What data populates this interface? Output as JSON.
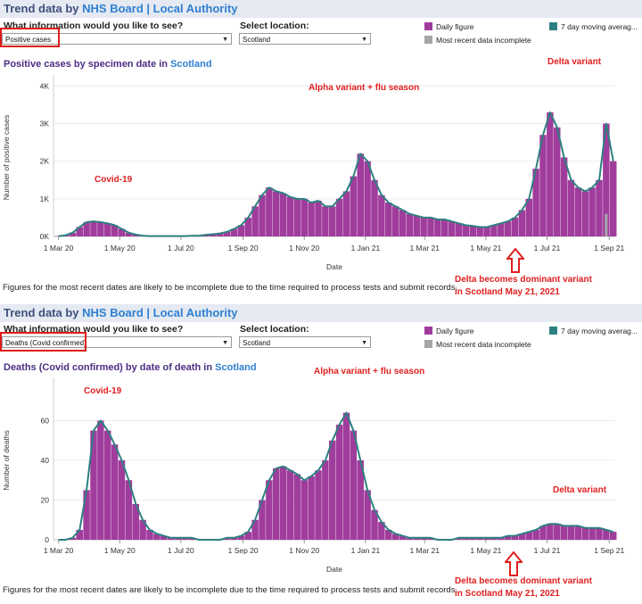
{
  "colors": {
    "daily": "#a03c9c",
    "incomplete": "#a6a6a6",
    "moving_avg": "#2e8080",
    "accent_red": "#e02020",
    "title_purple": "#4a2d84",
    "link_blue": "#2f7fd0",
    "header_bg": "#e4e9f2"
  },
  "icons": {
    "dropdown": "chevron-down-icon",
    "arrow": "red-up-arrow-icon"
  },
  "panels": [
    {
      "header": {
        "title": "Trend data by",
        "link1": "NHS Board",
        "sep": "|",
        "link2": "Local Authority"
      },
      "info_label": "What information would you like to see?",
      "info_value": "Positive cases",
      "location_label": "Select location:",
      "location_value": "Scotland",
      "legend": {
        "daily": "Daily figure",
        "incomplete": "Most recent data incomplete",
        "moving_avg": "7 day moving averag..."
      },
      "chart_title": "Positive cases by specimen date in",
      "chart_title_loc": "Scotland",
      "note": "Figures for the most recent dates are likely to be incomplete due to the time required to process tests and submit records.",
      "annotations": {
        "covid": "Covid-19",
        "alpha": "Alpha variant + flu season",
        "delta": "Delta variant",
        "dominant_line1": "Delta becomes dominant variant",
        "dominant_line2": "in Scotland May 21, 2021"
      }
    },
    {
      "header": {
        "title": "Trend data by",
        "link1": "NHS Board",
        "sep": "|",
        "link2": "Local Authority"
      },
      "info_label": "What information would you like to see?",
      "info_value": "Deaths (Covid confirmed)",
      "location_label": "Select location:",
      "location_value": "Scotland",
      "legend": {
        "daily": "Daily figure",
        "incomplete": "Most recent data incomplete",
        "moving_avg": "7 day moving averag..."
      },
      "chart_title": "Deaths (Covid confirmed) by date of death in",
      "chart_title_loc": "Scotland",
      "note": "Figures for the most recent dates are likely to be incomplete due to the time required to process tests and submit records.",
      "annotations": {
        "covid": "Covid-19",
        "alpha": "Alpha variant + flu season",
        "delta": "Delta variant",
        "dominant_line1": "Delta becomes dominant variant",
        "dominant_line2": "in Scotland May 21, 2021"
      }
    }
  ],
  "chart_data": [
    {
      "type": "bar",
      "title": "Positive cases by specimen date in Scotland",
      "xlabel": "Date",
      "ylabel": "Number of positive cases",
      "ylim": [
        0,
        4200
      ],
      "yticks": [
        0,
        1000,
        2000,
        3000,
        4000
      ],
      "ytick_labels": [
        "0K",
        "1K",
        "2K",
        "3K",
        "4K"
      ],
      "x_tick_labels": [
        "1 Mar 20",
        "1 May 20",
        "1 Jul 20",
        "1 Sep 20",
        "1 Nov 20",
        "1 Jan 21",
        "1 Mar 21",
        "1 May 21",
        "1 Jul 21",
        "1 Sep 21"
      ],
      "x_tick_days": [
        0,
        61,
        122,
        184,
        245,
        306,
        365,
        426,
        487,
        549
      ],
      "x_range_days": [
        -5,
        555
      ],
      "series_resolution": "weekly (approximate, values every 7 days from 1 Mar 2020)",
      "series": [
        {
          "name": "Daily figure (weekly avg, approx.)",
          "start_day": 0,
          "step_days": 7,
          "values": [
            10,
            30,
            100,
            250,
            380,
            400,
            380,
            350,
            300,
            200,
            100,
            50,
            20,
            10,
            10,
            10,
            10,
            10,
            10,
            20,
            20,
            40,
            60,
            80,
            120,
            200,
            300,
            500,
            800,
            1100,
            1300,
            1200,
            1150,
            1050,
            1000,
            1000,
            900,
            950,
            800,
            800,
            1000,
            1200,
            1600,
            2200,
            2000,
            1500,
            1100,
            900,
            800,
            700,
            600,
            550,
            500,
            500,
            450,
            450,
            400,
            350,
            300,
            280,
            250,
            250,
            300,
            350,
            400,
            500,
            700,
            1000,
            1800,
            2700,
            3300,
            2900,
            2100,
            1500,
            1300,
            1200,
            1300,
            1500,
            3000,
            2000
          ]
        },
        {
          "name": "7 day moving average",
          "start_day": 0,
          "step_days": 7,
          "values": [
            10,
            30,
            100,
            250,
            380,
            400,
            380,
            350,
            300,
            200,
            100,
            50,
            20,
            10,
            10,
            10,
            10,
            10,
            10,
            20,
            20,
            40,
            60,
            80,
            120,
            200,
            300,
            500,
            800,
            1100,
            1300,
            1200,
            1150,
            1050,
            1000,
            1000,
            900,
            950,
            800,
            800,
            1000,
            1200,
            1600,
            2200,
            2000,
            1500,
            1100,
            900,
            800,
            700,
            600,
            550,
            500,
            500,
            450,
            450,
            400,
            350,
            300,
            280,
            250,
            250,
            300,
            350,
            400,
            500,
            700,
            1000,
            1800,
            2700,
            3300,
            2900,
            2100,
            1500,
            1300,
            1200,
            1300,
            1500,
            3000,
            2000
          ]
        },
        {
          "name": "Most recent data incomplete",
          "start_day": 546,
          "step_days": 7,
          "values": [
            600
          ]
        }
      ],
      "legend_position": "top-right"
    },
    {
      "type": "bar",
      "title": "Deaths (Covid confirmed) by date of death in Scotland",
      "xlabel": "Date",
      "ylabel": "Number of deaths",
      "ylim": [
        0,
        80
      ],
      "yticks": [
        0,
        20,
        40,
        60
      ],
      "ytick_labels": [
        "0",
        "20",
        "40",
        "60"
      ],
      "x_tick_labels": [
        "1 Mar 20",
        "1 May 20",
        "1 Jul 20",
        "1 Sep 20",
        "1 Nov 20",
        "1 Jan 21",
        "1 Mar 21",
        "1 May 21",
        "1 Jul 21",
        "1 Sep 21"
      ],
      "x_tick_days": [
        0,
        61,
        122,
        184,
        245,
        306,
        365,
        426,
        487,
        549
      ],
      "x_range_days": [
        -5,
        555
      ],
      "series_resolution": "weekly (approximate, values every 7 days from 1 Mar 2020)",
      "series": [
        {
          "name": "Daily figure (weekly avg, approx.)",
          "start_day": 0,
          "step_days": 7,
          "values": [
            0,
            0,
            1,
            5,
            25,
            55,
            60,
            55,
            48,
            40,
            30,
            18,
            10,
            5,
            3,
            2,
            1,
            1,
            1,
            1,
            0,
            0,
            0,
            0,
            1,
            1,
            2,
            4,
            10,
            20,
            30,
            36,
            37,
            35,
            33,
            30,
            32,
            35,
            40,
            50,
            58,
            64,
            55,
            40,
            25,
            15,
            9,
            5,
            3,
            2,
            1,
            1,
            1,
            1,
            0,
            0,
            0,
            1,
            1,
            1,
            1,
            1,
            1,
            1,
            2,
            2,
            3,
            4,
            5,
            7,
            8,
            8,
            7,
            7,
            7,
            6,
            6,
            6,
            5,
            4
          ]
        },
        {
          "name": "7 day moving average",
          "start_day": 0,
          "step_days": 7,
          "values": [
            0,
            0,
            1,
            5,
            25,
            55,
            60,
            55,
            48,
            40,
            30,
            18,
            10,
            5,
            3,
            2,
            1,
            1,
            1,
            1,
            0,
            0,
            0,
            0,
            1,
            1,
            2,
            4,
            10,
            20,
            30,
            36,
            37,
            35,
            33,
            30,
            32,
            35,
            40,
            50,
            58,
            64,
            55,
            40,
            25,
            15,
            9,
            5,
            3,
            2,
            1,
            1,
            1,
            1,
            0,
            0,
            0,
            1,
            1,
            1,
            1,
            1,
            1,
            1,
            2,
            2,
            3,
            4,
            5,
            7,
            8,
            8,
            7,
            7,
            7,
            6,
            6,
            6,
            5,
            4
          ]
        }
      ],
      "legend_position": "top-right"
    }
  ]
}
